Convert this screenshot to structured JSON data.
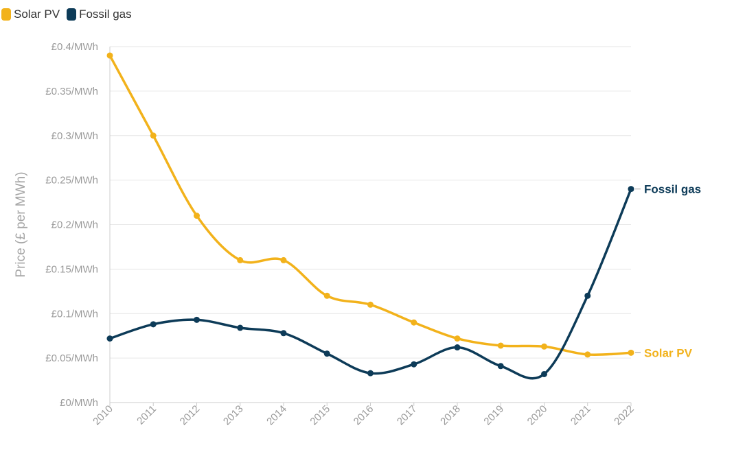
{
  "legend": [
    {
      "label": "Solar PV",
      "color": "#F2B21B"
    },
    {
      "label": "Fossil gas",
      "color": "#0D3B58"
    }
  ],
  "chart_data": {
    "type": "line",
    "title": "",
    "xlabel": "",
    "ylabel": "Price (£ per MWh)",
    "x": [
      "2010",
      "2011",
      "2012",
      "2013",
      "2014",
      "2015",
      "2016",
      "2017",
      "2018",
      "2019",
      "2020",
      "2021",
      "2022"
    ],
    "y_ticks": [
      "£0/MWh",
      "£0.05/MWh",
      "£0.1/MWh",
      "£0.15/MWh",
      "£0.2/MWh",
      "£0.25/MWh",
      "£0.3/MWh",
      "£0.35/MWh",
      "£0.4/MWh"
    ],
    "ylim": [
      0,
      0.4
    ],
    "grid": true,
    "series": [
      {
        "name": "Solar PV",
        "color": "#F2B21B",
        "values": [
          0.39,
          0.3,
          0.21,
          0.16,
          0.16,
          0.12,
          0.11,
          0.09,
          0.072,
          0.064,
          0.063,
          0.054,
          0.056
        ],
        "end_label": "Solar PV"
      },
      {
        "name": "Fossil gas",
        "color": "#0D3B58",
        "values": [
          0.072,
          0.088,
          0.093,
          0.084,
          0.078,
          0.055,
          0.033,
          0.043,
          0.062,
          0.041,
          0.032,
          0.12,
          0.24
        ],
        "end_label": "Fossil gas"
      }
    ]
  }
}
